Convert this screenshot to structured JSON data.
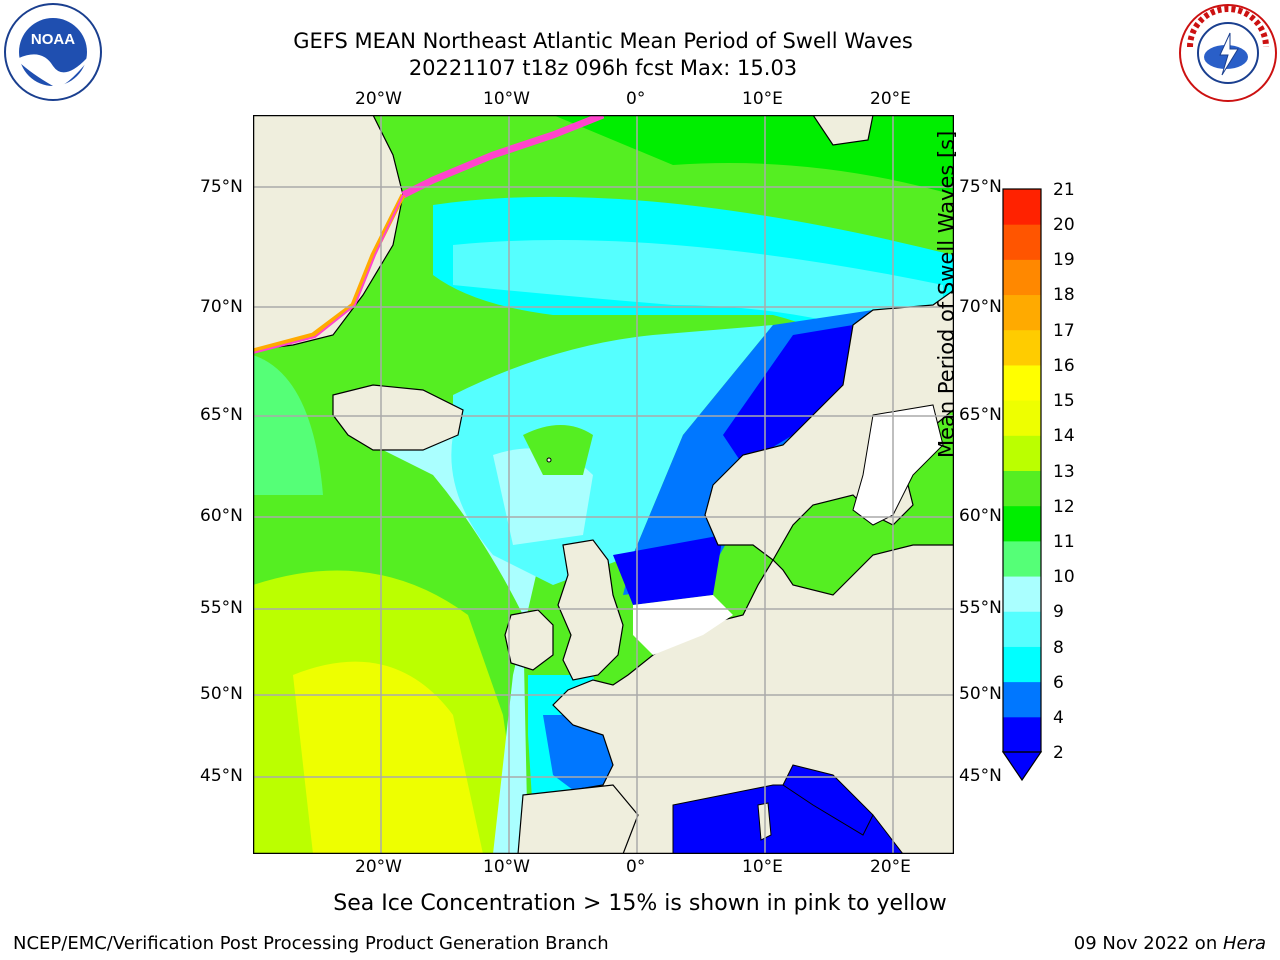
{
  "header": {
    "title_line1": "GEFS MEAN Northeast Atlantic Mean Period of Swell Waves",
    "title_line2": "20221107 t18z 096h fcst   Max: 15.03"
  },
  "logos": {
    "left": "NOAA",
    "right": "NATIONAL WEATHER SERVICE"
  },
  "map": {
    "lon_labels": [
      "20°W",
      "10°W",
      "0°",
      "10°E",
      "20°E"
    ],
    "lat_labels": [
      "75°N",
      "70°N",
      "65°N",
      "60°N",
      "55°N",
      "50°N",
      "45°N"
    ],
    "colors": {
      "land": "#efeedd",
      "sea_ice": "#ff44cc",
      "grid": "#aaaaaa"
    }
  },
  "colorbar": {
    "label": "Mean Period of Swell Waves [s]",
    "ticks": [
      "2",
      "4",
      "6",
      "8",
      "9",
      "10",
      "11",
      "12",
      "13",
      "14",
      "15",
      "16",
      "17",
      "18",
      "19",
      "20",
      "21"
    ],
    "colors": [
      "#0000ff",
      "#0077ff",
      "#00ffff",
      "#55ffff",
      "#aaffff",
      "#55ff77",
      "#00ee00",
      "#55ee22",
      "#bbff00",
      "#eeff00",
      "#ffff00",
      "#ffcc00",
      "#ffaa00",
      "#ff8800",
      "#ff5500",
      "#ff2200"
    ]
  },
  "notes": {
    "sea_ice": "Sea Ice Concentration > 15% is shown in pink to yellow"
  },
  "footer": {
    "left": "NCEP/EMC/Verification Post Processing Product Generation Branch",
    "date": "09 Nov 2022 on ",
    "host": "Hera"
  }
}
